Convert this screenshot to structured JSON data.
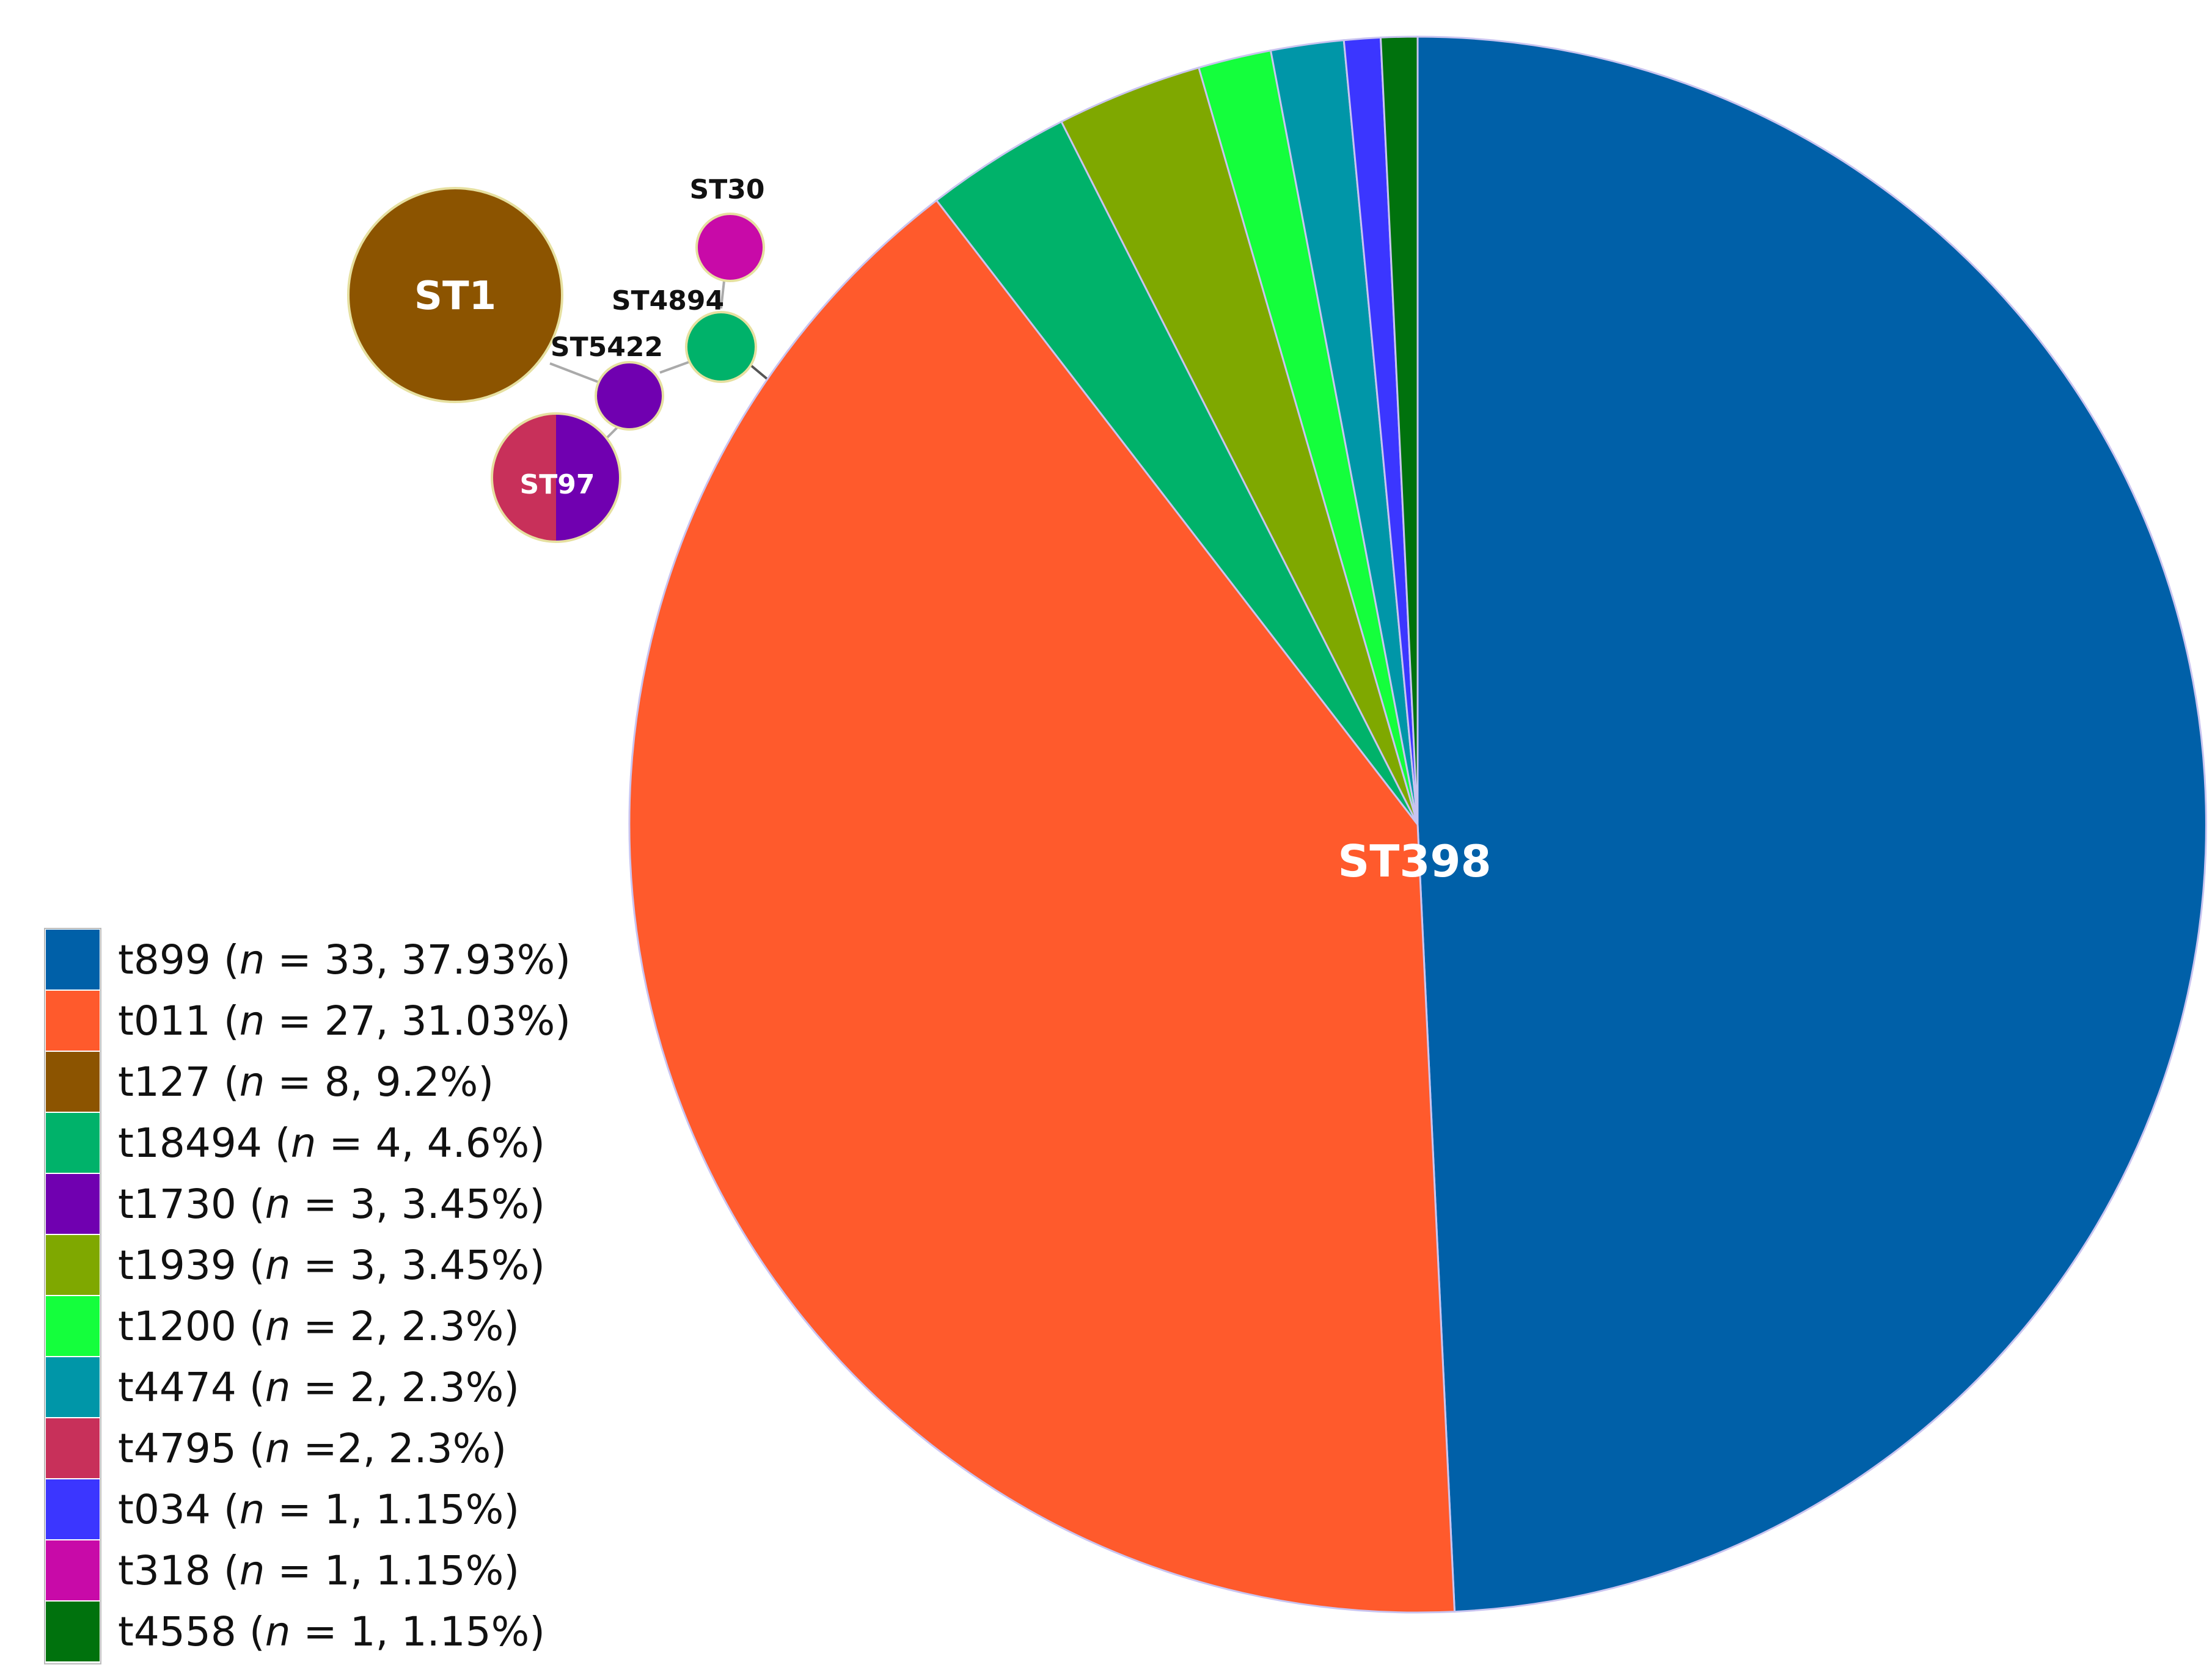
{
  "chart_data": {
    "type": "pie",
    "title": "",
    "center_label": "ST398",
    "slices": [
      {
        "label": "t899",
        "n": 33,
        "percent": "37.93%",
        "color": "#0060A8"
      },
      {
        "label": "t011",
        "n": 27,
        "percent": "31.03%",
        "color": "#FF5A2C"
      },
      {
        "label": "t18494",
        "n": 2,
        "color": "#00B26A"
      },
      {
        "label": "t1939",
        "n": 2,
        "color": "#7FA800"
      },
      {
        "label": "t1200",
        "n": 1,
        "color": "#14FF3C"
      },
      {
        "label": "t4474",
        "n": 1,
        "color": "#0096A8"
      },
      {
        "label": "t034",
        "n": 0.5,
        "color": "#3B36FF"
      },
      {
        "label": "t4558",
        "n": 0.5,
        "color": "#00720D"
      }
    ],
    "network_nodes": [
      {
        "label": "ST1",
        "color": "#8C5400"
      },
      {
        "label": "ST30",
        "color": "#C80AA8"
      },
      {
        "label": "ST4894",
        "color": "#00B26A"
      },
      {
        "label": "ST5422",
        "color": "#7000B0"
      },
      {
        "label": "ST97",
        "colors": [
          "#C8305A",
          "#7000B0"
        ]
      }
    ],
    "legend": {
      "position": "bottom-left",
      "entries": [
        {
          "label": "t899",
          "n": "33",
          "pct": "37.93%",
          "color": "#0060A8"
        },
        {
          "label": "t011",
          "n": "27",
          "pct": "31.03%",
          "color": "#FF5A2C"
        },
        {
          "label": "t127",
          "n": "8",
          "pct": "9.2%",
          "color": "#8C5400"
        },
        {
          "label": "t18494",
          "n": "4",
          "pct": "4.6%",
          "color": "#00B26A"
        },
        {
          "label": "t1730",
          "n": "3",
          "pct": "3.45%",
          "color": "#7000B0"
        },
        {
          "label": "t1939",
          "n": "3",
          "pct": "3.45%",
          "color": "#7FA800"
        },
        {
          "label": "t1200",
          "n": "2",
          "pct": "2.3%",
          "color": "#14FF3C"
        },
        {
          "label": "t4474",
          "n": "2",
          "pct": "2.3%",
          "color": "#0096A8"
        },
        {
          "label": "t4795",
          "n": "2",
          "pct": "2.3%",
          "color": "#C8305A",
          "tight_eq": true
        },
        {
          "label": "t034",
          "n": "1",
          "pct": "1.15%",
          "color": "#3B36FF"
        },
        {
          "label": "t318",
          "n": "1",
          "pct": "1.15%",
          "color": "#C80AA8"
        },
        {
          "label": "t4558",
          "n": "1",
          "pct": "1.15%",
          "color": "#00720D"
        }
      ]
    }
  }
}
